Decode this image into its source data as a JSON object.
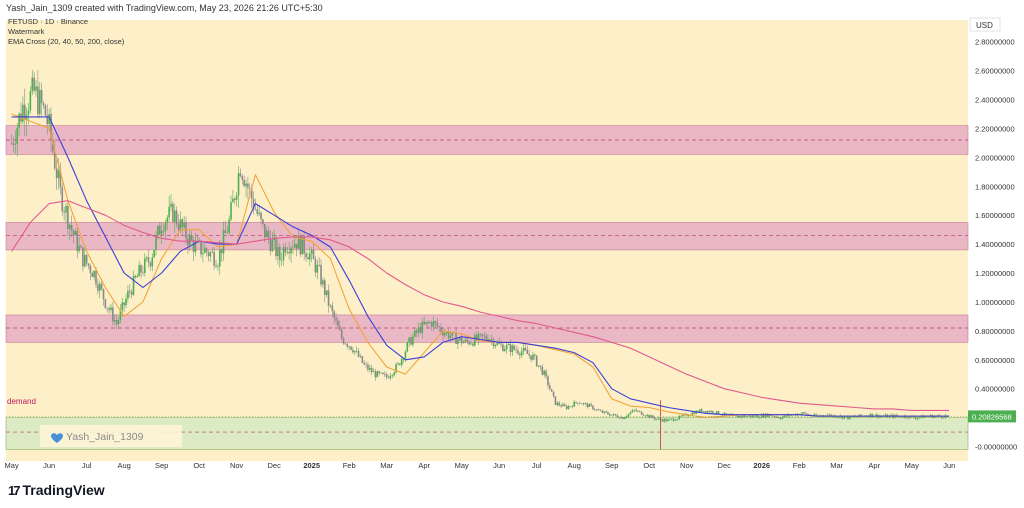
{
  "header": {
    "created_text": "Yash_Jain_1309 created with TradingView.com, May 23, 2026 21:26 UTC+5:30"
  },
  "legend": {
    "line1": "FETUSD · 1D · Binance",
    "line2": "Watermark",
    "line3": "EMA Cross (20, 40, 50, 200, close)"
  },
  "labels": {
    "currency": "USD",
    "demand": "demand",
    "watermark_user": "Yash_Jain_1309",
    "last_price": "0.20826568"
  },
  "footer": {
    "brand": "TradingView",
    "logo_icon": "tradingview-logo-icon"
  },
  "colors": {
    "background": "#fdf0c8",
    "resistance_zone": "#e9b8c4",
    "demand_zone": "#dcebc4",
    "candle_green": "#4caf50",
    "candle_red": "#888888",
    "ema20": "#f2a43a",
    "ema40": "#3b3fd8",
    "ema200": "#e05a8f",
    "dashed_line": "#b0406a"
  },
  "chart_data": {
    "type": "line",
    "symbol": "FETUSD",
    "interval": "1D",
    "exchange": "Binance",
    "y_axis": {
      "position": "right",
      "ticks": [
        2.8,
        2.6,
        2.4,
        2.2,
        2.0,
        1.8,
        1.6,
        1.4,
        1.2,
        1.0,
        0.8,
        0.6,
        0.4,
        0.2,
        0.0
      ],
      "tick_labels": [
        "2.80000000",
        "2.60000000",
        "2.40000000",
        "2.20000000",
        "2.00000000",
        "1.80000000",
        "1.60000000",
        "1.40000000",
        "1.20000000",
        "1.00000000",
        "0.80000000",
        "0.60000000",
        "0.40000000",
        "0.20000000",
        "-0.00000000"
      ],
      "range": [
        -0.1,
        2.95
      ]
    },
    "x_axis": {
      "tick_labels": [
        "May",
        "Jun",
        "Jul",
        "Aug",
        "Sep",
        "Oct",
        "Nov",
        "Dec",
        "2025",
        "Feb",
        "Mar",
        "Apr",
        "May",
        "Jun",
        "Jul",
        "Aug",
        "Sep",
        "Oct",
        "Nov",
        "Dec",
        "2026",
        "Feb",
        "Mar",
        "Apr",
        "May",
        "Jun"
      ],
      "tick_index": [
        0,
        1,
        2,
        3,
        4,
        5,
        6,
        7,
        8,
        9,
        10,
        11,
        12,
        13,
        14,
        15,
        16,
        17,
        18,
        19,
        20,
        21,
        22,
        23,
        24,
        25
      ],
      "range": [
        -0.15,
        25.5
      ]
    },
    "zones": [
      {
        "name": "resistance-zone-1",
        "low": 2.02,
        "high": 2.22,
        "mid": 2.12
      },
      {
        "name": "resistance-zone-2",
        "low": 1.36,
        "high": 1.55,
        "mid": 1.46
      },
      {
        "name": "resistance-zone-3",
        "low": 0.72,
        "high": 0.91,
        "mid": 0.82
      },
      {
        "name": "demand-zone",
        "low": -0.02,
        "high": 0.2,
        "mid": 0.1
      }
    ],
    "last_price": 0.20826568,
    "price": {
      "x": [
        0,
        0.3,
        0.6,
        0.9,
        1.0,
        1.3,
        1.6,
        1.9,
        2.2,
        2.5,
        2.8,
        3.1,
        3.4,
        3.7,
        4.0,
        4.3,
        4.6,
        4.9,
        5.2,
        5.5,
        5.8,
        6.1,
        6.4,
        6.7,
        7.0,
        7.15,
        7.3,
        7.6,
        7.9,
        8.2,
        8.5,
        8.8,
        9.1,
        9.4,
        9.7,
        10.0,
        10.3,
        10.6,
        10.9,
        11.2,
        11.5,
        11.8,
        12.1,
        12.4,
        12.7,
        13.0,
        13.3,
        13.6,
        13.9,
        14.2,
        14.5,
        14.8,
        15.1,
        15.4,
        15.7,
        16.0,
        16.3,
        16.6,
        16.9,
        17.2,
        17.5,
        17.8,
        18.1,
        18.4,
        18.7,
        19.0,
        19.3,
        19.6,
        19.9,
        20.2,
        20.5,
        20.8,
        21.1,
        21.4,
        21.7,
        22.0,
        22.3,
        22.6,
        22.9,
        23.2,
        23.5,
        23.8,
        24.1,
        24.4,
        24.7,
        25.0
      ],
      "close": [
        2.1,
        2.35,
        2.45,
        2.3,
        2.2,
        1.75,
        1.5,
        1.3,
        1.2,
        1.0,
        0.85,
        1.05,
        1.2,
        1.3,
        1.55,
        1.62,
        1.48,
        1.38,
        1.35,
        1.3,
        1.55,
        1.95,
        1.72,
        1.5,
        1.38,
        1.3,
        1.4,
        1.42,
        1.35,
        1.2,
        0.95,
        0.75,
        0.68,
        0.56,
        0.5,
        0.48,
        0.56,
        0.72,
        0.82,
        0.86,
        0.8,
        0.75,
        0.72,
        0.74,
        0.76,
        0.7,
        0.68,
        0.66,
        0.62,
        0.5,
        0.3,
        0.27,
        0.31,
        0.28,
        0.24,
        0.22,
        0.2,
        0.25,
        0.22,
        0.19,
        0.18,
        0.2,
        0.23,
        0.25,
        0.24,
        0.22,
        0.21,
        0.21,
        0.21,
        0.22,
        0.2,
        0.22,
        0.23,
        0.21,
        0.22,
        0.21,
        0.2,
        0.21,
        0.22,
        0.21,
        0.21,
        0.21,
        0.2,
        0.21,
        0.21,
        0.21
      ]
    },
    "series": [
      {
        "name": "EMA 20",
        "x": [
          0,
          1.0,
          1.5,
          2.0,
          2.5,
          3.0,
          3.5,
          4.0,
          4.5,
          5.0,
          5.5,
          6.0,
          6.5,
          7.0,
          7.5,
          8.0,
          8.5,
          9.0,
          9.5,
          10.0,
          10.5,
          11.0,
          11.5,
          12.0,
          12.5,
          13.0,
          13.5,
          14.0,
          14.5,
          15.0,
          15.5,
          16.0,
          16.5,
          17.0,
          17.5,
          18.0,
          18.5,
          19.0,
          19.5,
          20.0,
          20.5,
          21.0,
          21.5,
          22.0,
          22.5,
          23.0,
          23.5,
          24.0,
          24.5,
          25.0
        ],
        "values": [
          2.3,
          2.2,
          1.7,
          1.35,
          1.1,
          0.9,
          1.0,
          1.3,
          1.5,
          1.5,
          1.38,
          1.4,
          1.88,
          1.62,
          1.45,
          1.42,
          1.3,
          0.95,
          0.72,
          0.55,
          0.5,
          0.65,
          0.8,
          0.78,
          0.73,
          0.72,
          0.72,
          0.7,
          0.67,
          0.64,
          0.55,
          0.33,
          0.28,
          0.27,
          0.24,
          0.22,
          0.2,
          0.21,
          0.22,
          0.22,
          0.22,
          0.22,
          0.21,
          0.21,
          0.21,
          0.21,
          0.21,
          0.21,
          0.21,
          0.21
        ]
      },
      {
        "name": "EMA 40",
        "x": [
          0,
          1.0,
          1.5,
          2.0,
          2.5,
          3.0,
          3.5,
          4.0,
          4.5,
          5.0,
          5.5,
          6.0,
          6.5,
          7.0,
          7.5,
          8.0,
          8.5,
          9.0,
          9.5,
          10.0,
          10.5,
          11.0,
          11.5,
          12.0,
          12.5,
          13.0,
          13.5,
          14.0,
          14.5,
          15.0,
          15.5,
          16.0,
          16.5,
          17.0,
          17.5,
          18.0,
          18.5,
          19.0,
          19.5,
          20.0,
          20.5,
          21.0,
          21.5,
          22.0,
          22.5,
          23.0,
          23.5,
          24.0,
          24.5,
          25.0
        ],
        "values": [
          2.28,
          2.28,
          2.0,
          1.7,
          1.45,
          1.2,
          1.1,
          1.2,
          1.35,
          1.42,
          1.4,
          1.4,
          1.68,
          1.6,
          1.52,
          1.46,
          1.38,
          1.15,
          0.9,
          0.7,
          0.6,
          0.62,
          0.72,
          0.76,
          0.74,
          0.72,
          0.72,
          0.7,
          0.68,
          0.65,
          0.58,
          0.4,
          0.33,
          0.3,
          0.27,
          0.25,
          0.23,
          0.22,
          0.22,
          0.22,
          0.22,
          0.22,
          0.21,
          0.21,
          0.21,
          0.21,
          0.21,
          0.21,
          0.21,
          0.21
        ]
      },
      {
        "name": "EMA 200",
        "x": [
          0,
          0.5,
          1.0,
          1.5,
          2.0,
          2.5,
          3.0,
          3.5,
          4.0,
          4.5,
          5.0,
          5.5,
          6.0,
          6.5,
          7.0,
          7.5,
          8.0,
          8.5,
          9.0,
          9.5,
          10.0,
          10.5,
          11.0,
          11.5,
          12.0,
          12.5,
          13.0,
          13.5,
          14.0,
          14.5,
          15.0,
          15.5,
          16.0,
          16.5,
          17.0,
          17.5,
          18.0,
          18.5,
          19.0,
          19.5,
          20.0,
          20.5,
          21.0,
          21.5,
          22.0,
          22.5,
          23.0,
          23.5,
          24.0,
          24.5,
          25.0
        ],
        "values": [
          1.35,
          1.55,
          1.68,
          1.7,
          1.65,
          1.6,
          1.53,
          1.48,
          1.44,
          1.42,
          1.42,
          1.41,
          1.4,
          1.42,
          1.44,
          1.45,
          1.45,
          1.43,
          1.38,
          1.3,
          1.2,
          1.12,
          1.05,
          1.0,
          0.97,
          0.93,
          0.9,
          0.87,
          0.85,
          0.82,
          0.79,
          0.76,
          0.72,
          0.68,
          0.62,
          0.56,
          0.5,
          0.45,
          0.4,
          0.37,
          0.34,
          0.32,
          0.3,
          0.29,
          0.28,
          0.27,
          0.26,
          0.26,
          0.25,
          0.25,
          0.25
        ]
      }
    ]
  }
}
